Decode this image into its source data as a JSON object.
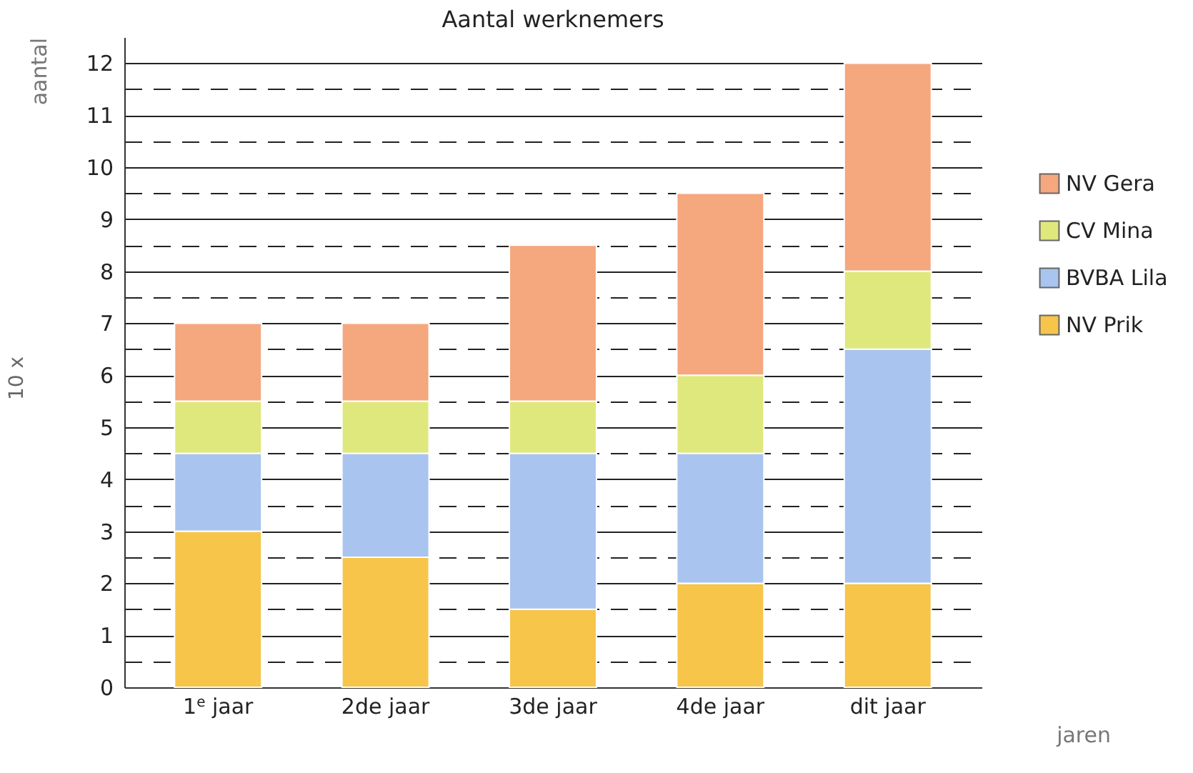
{
  "chart_data": {
    "type": "bar",
    "title": "Aantal werknemers",
    "ylabel": "aantal",
    "xlabel": "jaren",
    "annotations": [
      "10 x"
    ],
    "categories": [
      "1$^{e}$ jaar",
      "2de jaar",
      "3de jaar",
      "4de jaar",
      "dit jaar"
    ],
    "stacked": true,
    "series": [
      {
        "name": "NV Prik",
        "color": "#f6c54a",
        "values": [
          3,
          2.5,
          1.5,
          2,
          2
        ]
      },
      {
        "name": "BVBA Lila",
        "color": "#a9c4ee",
        "values": [
          1.5,
          2,
          3,
          2.5,
          4.5
        ]
      },
      {
        "name": "CV Mina",
        "color": "#dfe87c",
        "values": [
          1,
          1,
          1,
          1.5,
          1.5
        ]
      },
      {
        "name": "NV Gera",
        "color": "#f5a77e",
        "values": [
          1.5,
          1.5,
          3,
          3.5,
          4
        ]
      }
    ],
    "ylim": [
      0,
      12.5
    ],
    "yticks": [
      0,
      {
        "value": 0.5,
        "label": null
      },
      1,
      {
        "value": 1.5,
        "label": null
      },
      2,
      {
        "value": 2.5,
        "label": null
      },
      3,
      {
        "value": 3.5,
        "label": null
      },
      4,
      {
        "value": 4.5,
        "label": null
      },
      5,
      {
        "value": 5.5,
        "label": null
      },
      6,
      {
        "value": 6.5,
        "label": null
      },
      7,
      {
        "value": 7.5,
        "label": null
      },
      8,
      {
        "value": 8.5,
        "label": null
      },
      9,
      {
        "value": 9.5,
        "label": null
      },
      10,
      {
        "value": 10.5,
        "label": null
      },
      11,
      {
        "value": 11.5,
        "label": null
      },
      12
    ],
    "grid": "y",
    "legend": "right"
  }
}
